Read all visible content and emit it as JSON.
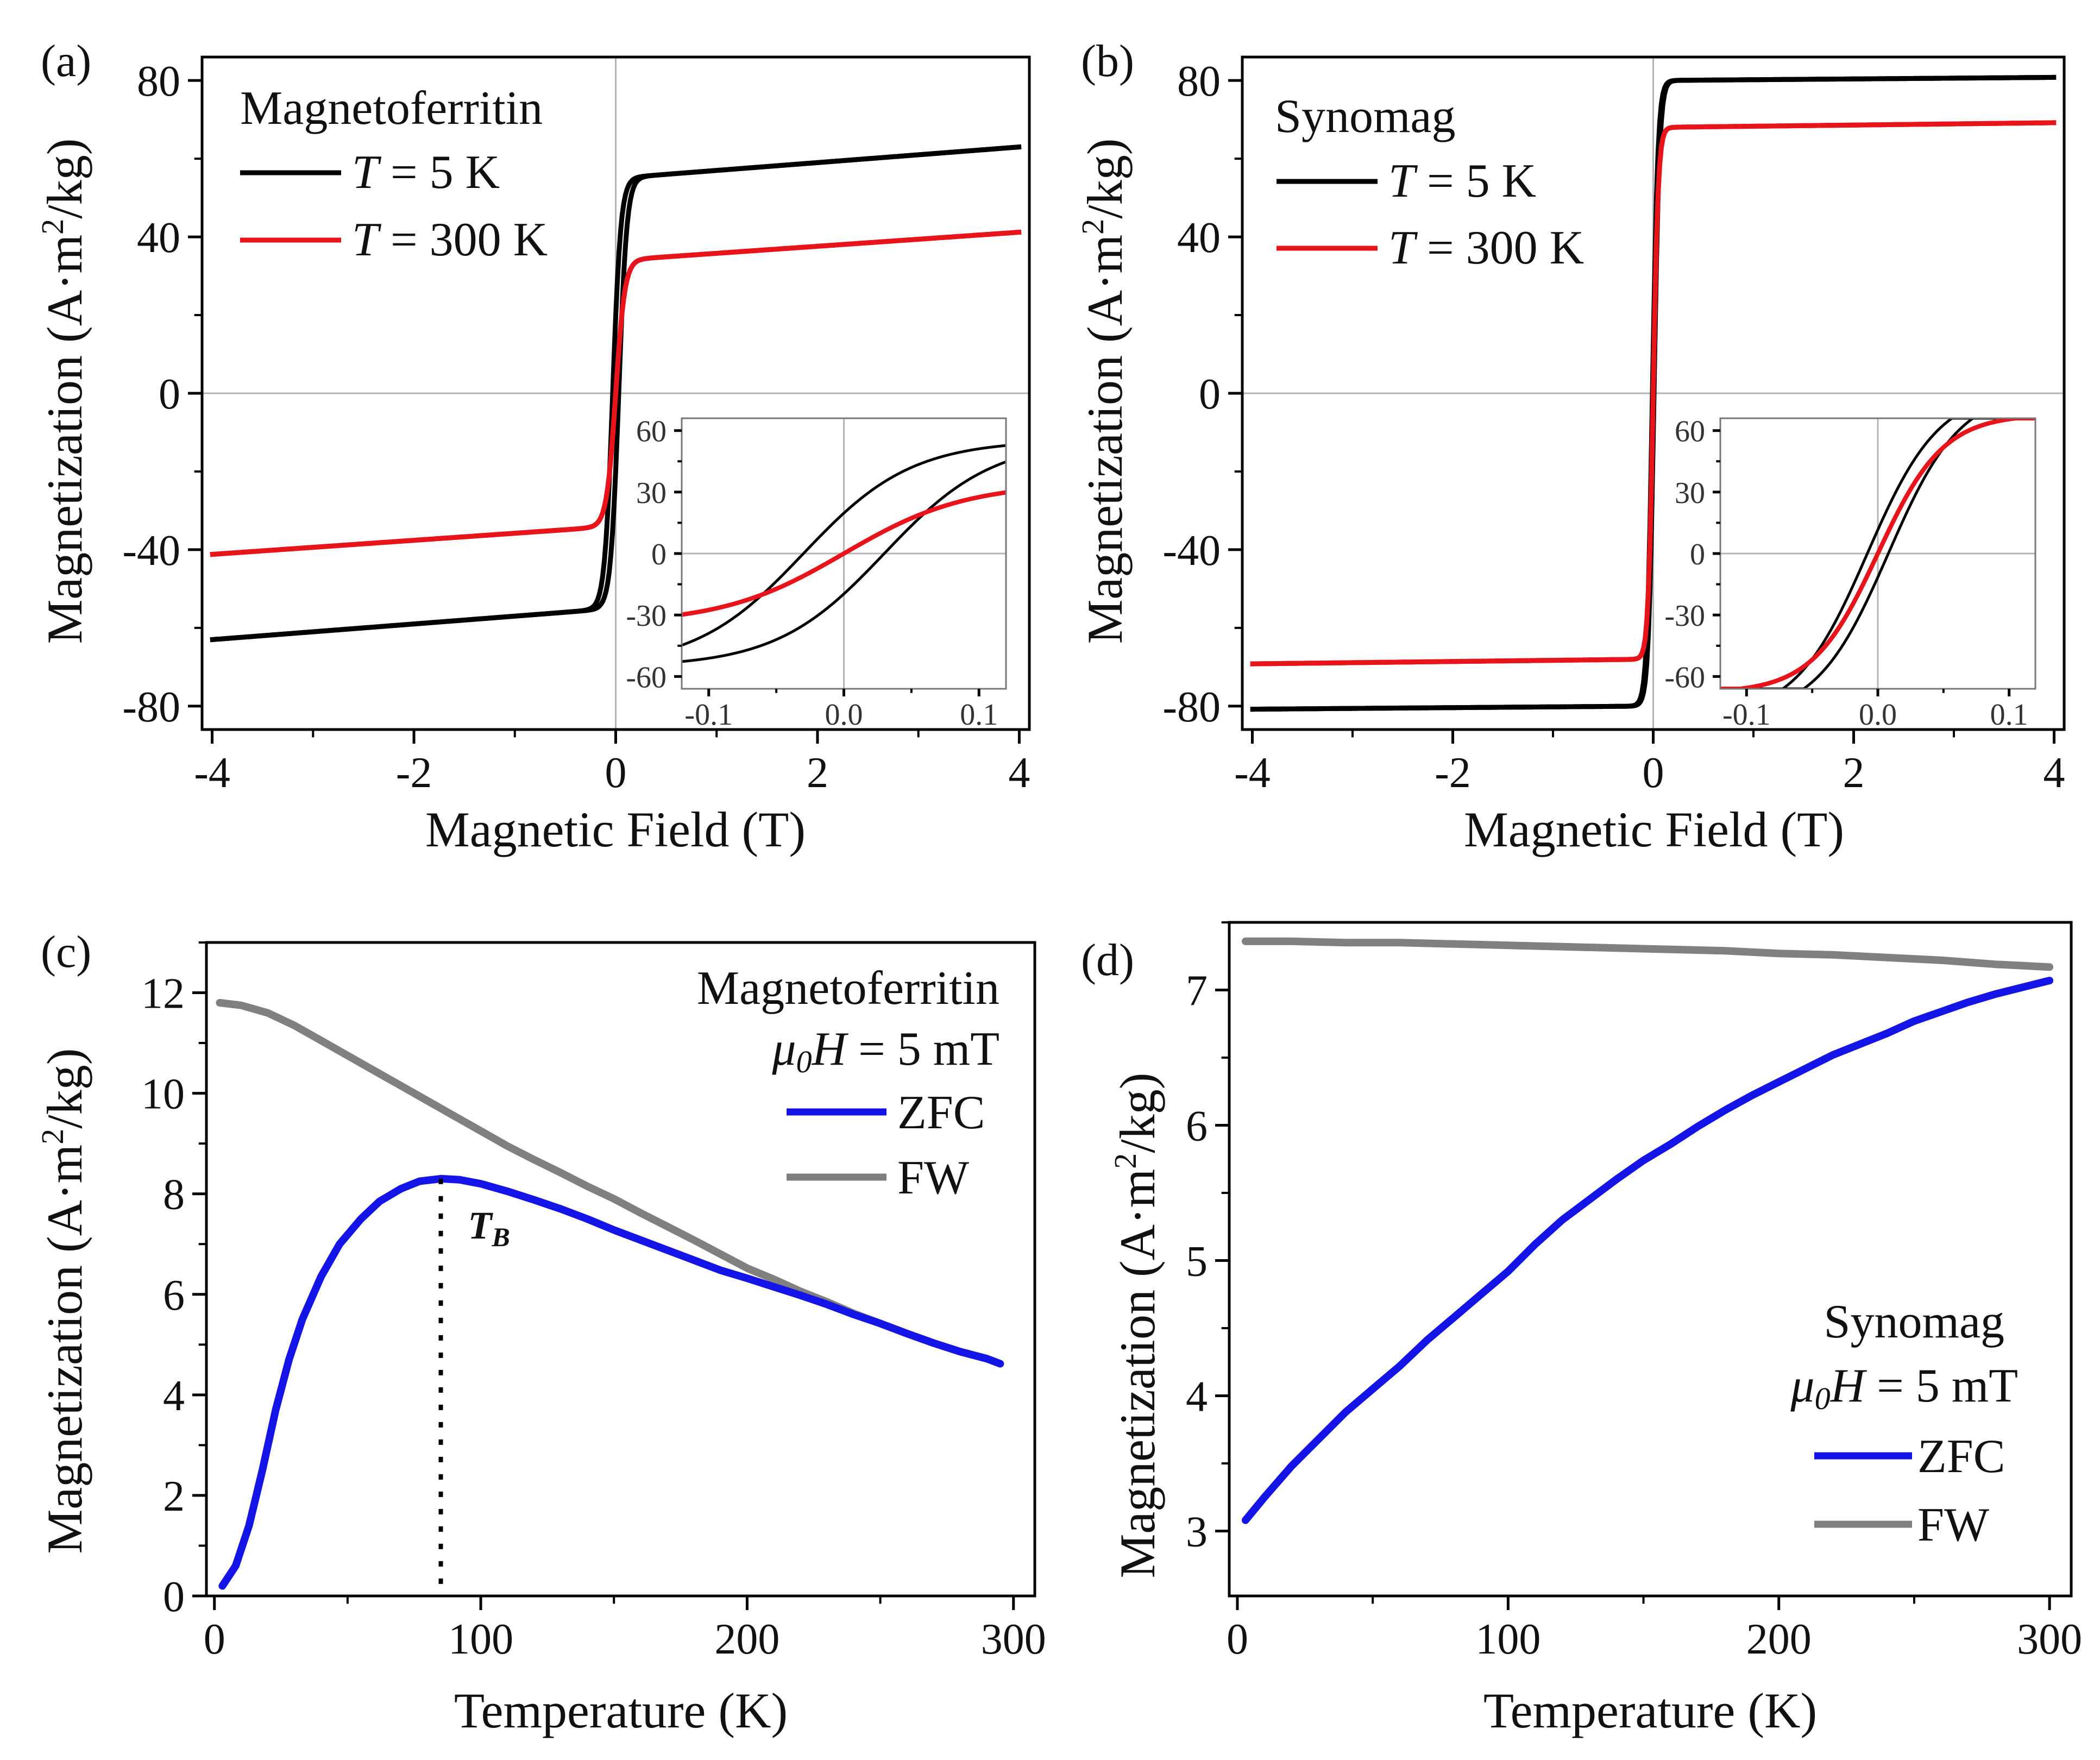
{
  "colors": {
    "black": "#000000",
    "red": "#e8141b",
    "blue": "#1414e6",
    "gray": "#808080",
    "axis": "#000000",
    "zero": "#b4b4b4"
  },
  "chart_data": [
    {
      "panel": "(a)",
      "type": "line",
      "xlabel": "Magnetic Field (T)",
      "ylabel_main": "Magnetization (A·m",
      "ylabel_sup": "2",
      "ylabel_tail": "/kg)",
      "xlim": [
        -4.1,
        4.1
      ],
      "ylim": [
        -86,
        86
      ],
      "xticks": [
        -4,
        -2,
        0,
        2,
        4
      ],
      "yticks": [
        -80,
        -40,
        0,
        40,
        80
      ],
      "xtick_labels": [
        "-4",
        "-2",
        "0",
        "2",
        "4"
      ],
      "ytick_labels": [
        "-80",
        "-40",
        "0",
        "40",
        "80"
      ],
      "legend_title": "Magnetoferritin",
      "legend": [
        {
          "prefix": "T",
          "text": " = 5 K",
          "color": "#000000"
        },
        {
          "prefix": "T",
          "text": " = 300 K",
          "color": "#e8141b"
        }
      ],
      "series": [
        {
          "name": "T = 5 K",
          "color": "#000000",
          "ms": 55,
          "h0": 0.03,
          "h1": 0.08,
          "chi": 2.0
        },
        {
          "name": "T = 300 K",
          "color": "#e8141b",
          "ms": 34,
          "h0": 0.0,
          "h1": 0.09,
          "chi": 1.8
        }
      ],
      "inset": {
        "xlim": [
          -0.12,
          0.12
        ],
        "ylim": [
          -66,
          66
        ],
        "xticks": [
          -0.1,
          0.0,
          0.1
        ],
        "yticks": [
          -60,
          -30,
          0,
          30,
          60
        ],
        "xtick_labels": [
          "-0.1",
          "0.0",
          "0.1"
        ],
        "ytick_labels": [
          "-60",
          "-30",
          "0",
          "30",
          "60"
        ],
        "series": [
          {
            "color": "#000000",
            "ms": 55,
            "h0": 0.03,
            "h1": 0.08,
            "chi": 2.0
          },
          {
            "color": "#e8141b",
            "ms": 34,
            "h0": 0.0,
            "h1": 0.09,
            "chi": 1.8
          }
        ]
      }
    },
    {
      "panel": "(b)",
      "type": "line",
      "xlabel": "Magnetic Field (T)",
      "ylabel_main": "Magnetization (A·m",
      "ylabel_sup": "2",
      "ylabel_tail": "/kg)",
      "xlim": [
        -4.1,
        4.1
      ],
      "ylim": [
        -86,
        86
      ],
      "xticks": [
        -4,
        -2,
        0,
        2,
        4
      ],
      "yticks": [
        -80,
        -40,
        0,
        40,
        80
      ],
      "xtick_labels": [
        "-4",
        "-2",
        "0",
        "2",
        "4"
      ],
      "ytick_labels": [
        "-80",
        "-40",
        "0",
        "40",
        "80"
      ],
      "legend_title": "Synomag",
      "legend": [
        {
          "prefix": "T",
          "text": " = 5 K",
          "color": "#000000"
        },
        {
          "prefix": "T",
          "text": " = 300 K",
          "color": "#e8141b"
        }
      ],
      "series": [
        {
          "name": "T = 5 K",
          "color": "#000000",
          "ms": 80,
          "h0": 0.008,
          "h1": 0.055,
          "chi": 0.2
        },
        {
          "name": "T = 300 K",
          "color": "#e8141b",
          "ms": 68,
          "h0": 0.0,
          "h1": 0.05,
          "chi": 0.3
        }
      ],
      "inset": {
        "xlim": [
          -0.12,
          0.12
        ],
        "ylim": [
          -66,
          66
        ],
        "xticks": [
          -0.1,
          0.0,
          0.1
        ],
        "yticks": [
          -60,
          -30,
          0,
          30,
          60
        ],
        "xtick_labels": [
          "-0.1",
          "0.0",
          "0.1"
        ],
        "ytick_labels": [
          "-60",
          "-30",
          "0",
          "30",
          "60"
        ],
        "series": [
          {
            "color": "#000000",
            "ms": 80,
            "h0": 0.008,
            "h1": 0.055,
            "chi": 0.2
          },
          {
            "color": "#e8141b",
            "ms": 68,
            "h0": 0.0,
            "h1": 0.05,
            "chi": 0.3
          }
        ]
      }
    },
    {
      "panel": "(c)",
      "type": "line",
      "xlabel": "Temperature (K)",
      "ylabel_main": "Magnetization (A·m",
      "ylabel_sup": "2",
      "ylabel_tail": "/kg)",
      "xlim": [
        -3,
        308
      ],
      "ylim": [
        0,
        13
      ],
      "xticks": [
        0,
        100,
        200,
        300
      ],
      "yticks": [
        0,
        2,
        4,
        6,
        8,
        10,
        12
      ],
      "xtick_labels": [
        "0",
        "100",
        "200",
        "300"
      ],
      "ytick_labels": [
        "0",
        "2",
        "4",
        "6",
        "8",
        "10",
        "12"
      ],
      "legend_title": "Magnetoferritin",
      "legend_field_prefix": "μ",
      "legend_field_sub": "0",
      "legend_field_h": "H",
      "legend_field_text": " = 5 mT",
      "legend": [
        {
          "text": "ZFC",
          "color": "#1414e6"
        },
        {
          "text": "FW",
          "color": "#808080"
        }
      ],
      "blocking_temperature": {
        "T": 85,
        "label_main": "T",
        "label_sub": "B"
      },
      "series": [
        {
          "name": "FW",
          "color": "#808080",
          "x": [
            2,
            10,
            20,
            30,
            40,
            50,
            60,
            70,
            80,
            90,
            100,
            110,
            120,
            130,
            140,
            150,
            160,
            170,
            180,
            190,
            200,
            210,
            220,
            230,
            240,
            250,
            260,
            270,
            280,
            290,
            295
          ],
          "y": [
            11.8,
            11.75,
            11.6,
            11.35,
            11.05,
            10.75,
            10.45,
            10.15,
            9.85,
            9.55,
            9.25,
            8.95,
            8.68,
            8.42,
            8.15,
            7.9,
            7.62,
            7.35,
            7.08,
            6.8,
            6.52,
            6.3,
            6.06,
            5.85,
            5.62,
            5.42,
            5.22,
            5.03,
            4.86,
            4.72,
            4.62
          ]
        },
        {
          "name": "ZFC",
          "color": "#1414e6",
          "x": [
            3,
            8,
            13,
            18,
            23,
            28,
            33,
            40,
            47,
            55,
            62,
            70,
            77,
            85,
            92,
            100,
            110,
            120,
            130,
            140,
            150,
            160,
            170,
            180,
            190,
            200,
            210,
            220,
            230,
            240,
            250,
            260,
            270,
            280,
            290,
            295
          ],
          "y": [
            0.2,
            0.6,
            1.4,
            2.5,
            3.7,
            4.7,
            5.5,
            6.35,
            7.0,
            7.5,
            7.85,
            8.1,
            8.25,
            8.3,
            8.28,
            8.2,
            8.05,
            7.88,
            7.7,
            7.5,
            7.28,
            7.08,
            6.88,
            6.68,
            6.48,
            6.32,
            6.15,
            5.98,
            5.8,
            5.6,
            5.42,
            5.22,
            5.03,
            4.86,
            4.72,
            4.62
          ]
        }
      ]
    },
    {
      "panel": "(d)",
      "type": "line",
      "xlabel": "Temperature (K)",
      "ylabel_main": "Magnetization (A·m",
      "ylabel_sup": "2",
      "ylabel_tail": "/kg)",
      "xlim": [
        -3,
        308
      ],
      "ylim": [
        2.52,
        7.5
      ],
      "xticks": [
        0,
        100,
        200,
        300
      ],
      "yticks": [
        3,
        4,
        5,
        6,
        7
      ],
      "xtick_labels": [
        "0",
        "100",
        "200",
        "300"
      ],
      "ytick_labels": [
        "3",
        "4",
        "5",
        "6",
        "7"
      ],
      "legend_title": "Synomag",
      "legend_field_prefix": "μ",
      "legend_field_sub": "0",
      "legend_field_h": "H",
      "legend_field_text": " = 5 mT",
      "legend": [
        {
          "text": "ZFC",
          "color": "#1414e6"
        },
        {
          "text": "FW",
          "color": "#808080"
        }
      ],
      "series": [
        {
          "name": "FW",
          "color": "#808080",
          "x": [
            3,
            20,
            40,
            60,
            80,
            100,
            120,
            140,
            160,
            180,
            200,
            220,
            240,
            260,
            280,
            300
          ],
          "y": [
            7.36,
            7.36,
            7.35,
            7.35,
            7.34,
            7.33,
            7.32,
            7.31,
            7.3,
            7.29,
            7.27,
            7.26,
            7.24,
            7.22,
            7.19,
            7.17
          ]
        },
        {
          "name": "ZFC",
          "color": "#1414e6",
          "x": [
            3,
            10,
            20,
            30,
            40,
            50,
            60,
            70,
            80,
            90,
            100,
            110,
            120,
            130,
            140,
            150,
            160,
            170,
            180,
            190,
            200,
            210,
            220,
            230,
            240,
            250,
            260,
            270,
            280,
            290,
            300
          ],
          "y": [
            3.08,
            3.25,
            3.48,
            3.68,
            3.88,
            4.05,
            4.22,
            4.41,
            4.58,
            4.75,
            4.92,
            5.12,
            5.3,
            5.45,
            5.6,
            5.74,
            5.86,
            5.99,
            6.11,
            6.22,
            6.32,
            6.42,
            6.52,
            6.6,
            6.68,
            6.77,
            6.84,
            6.91,
            6.97,
            7.02,
            7.07
          ]
        }
      ]
    }
  ]
}
